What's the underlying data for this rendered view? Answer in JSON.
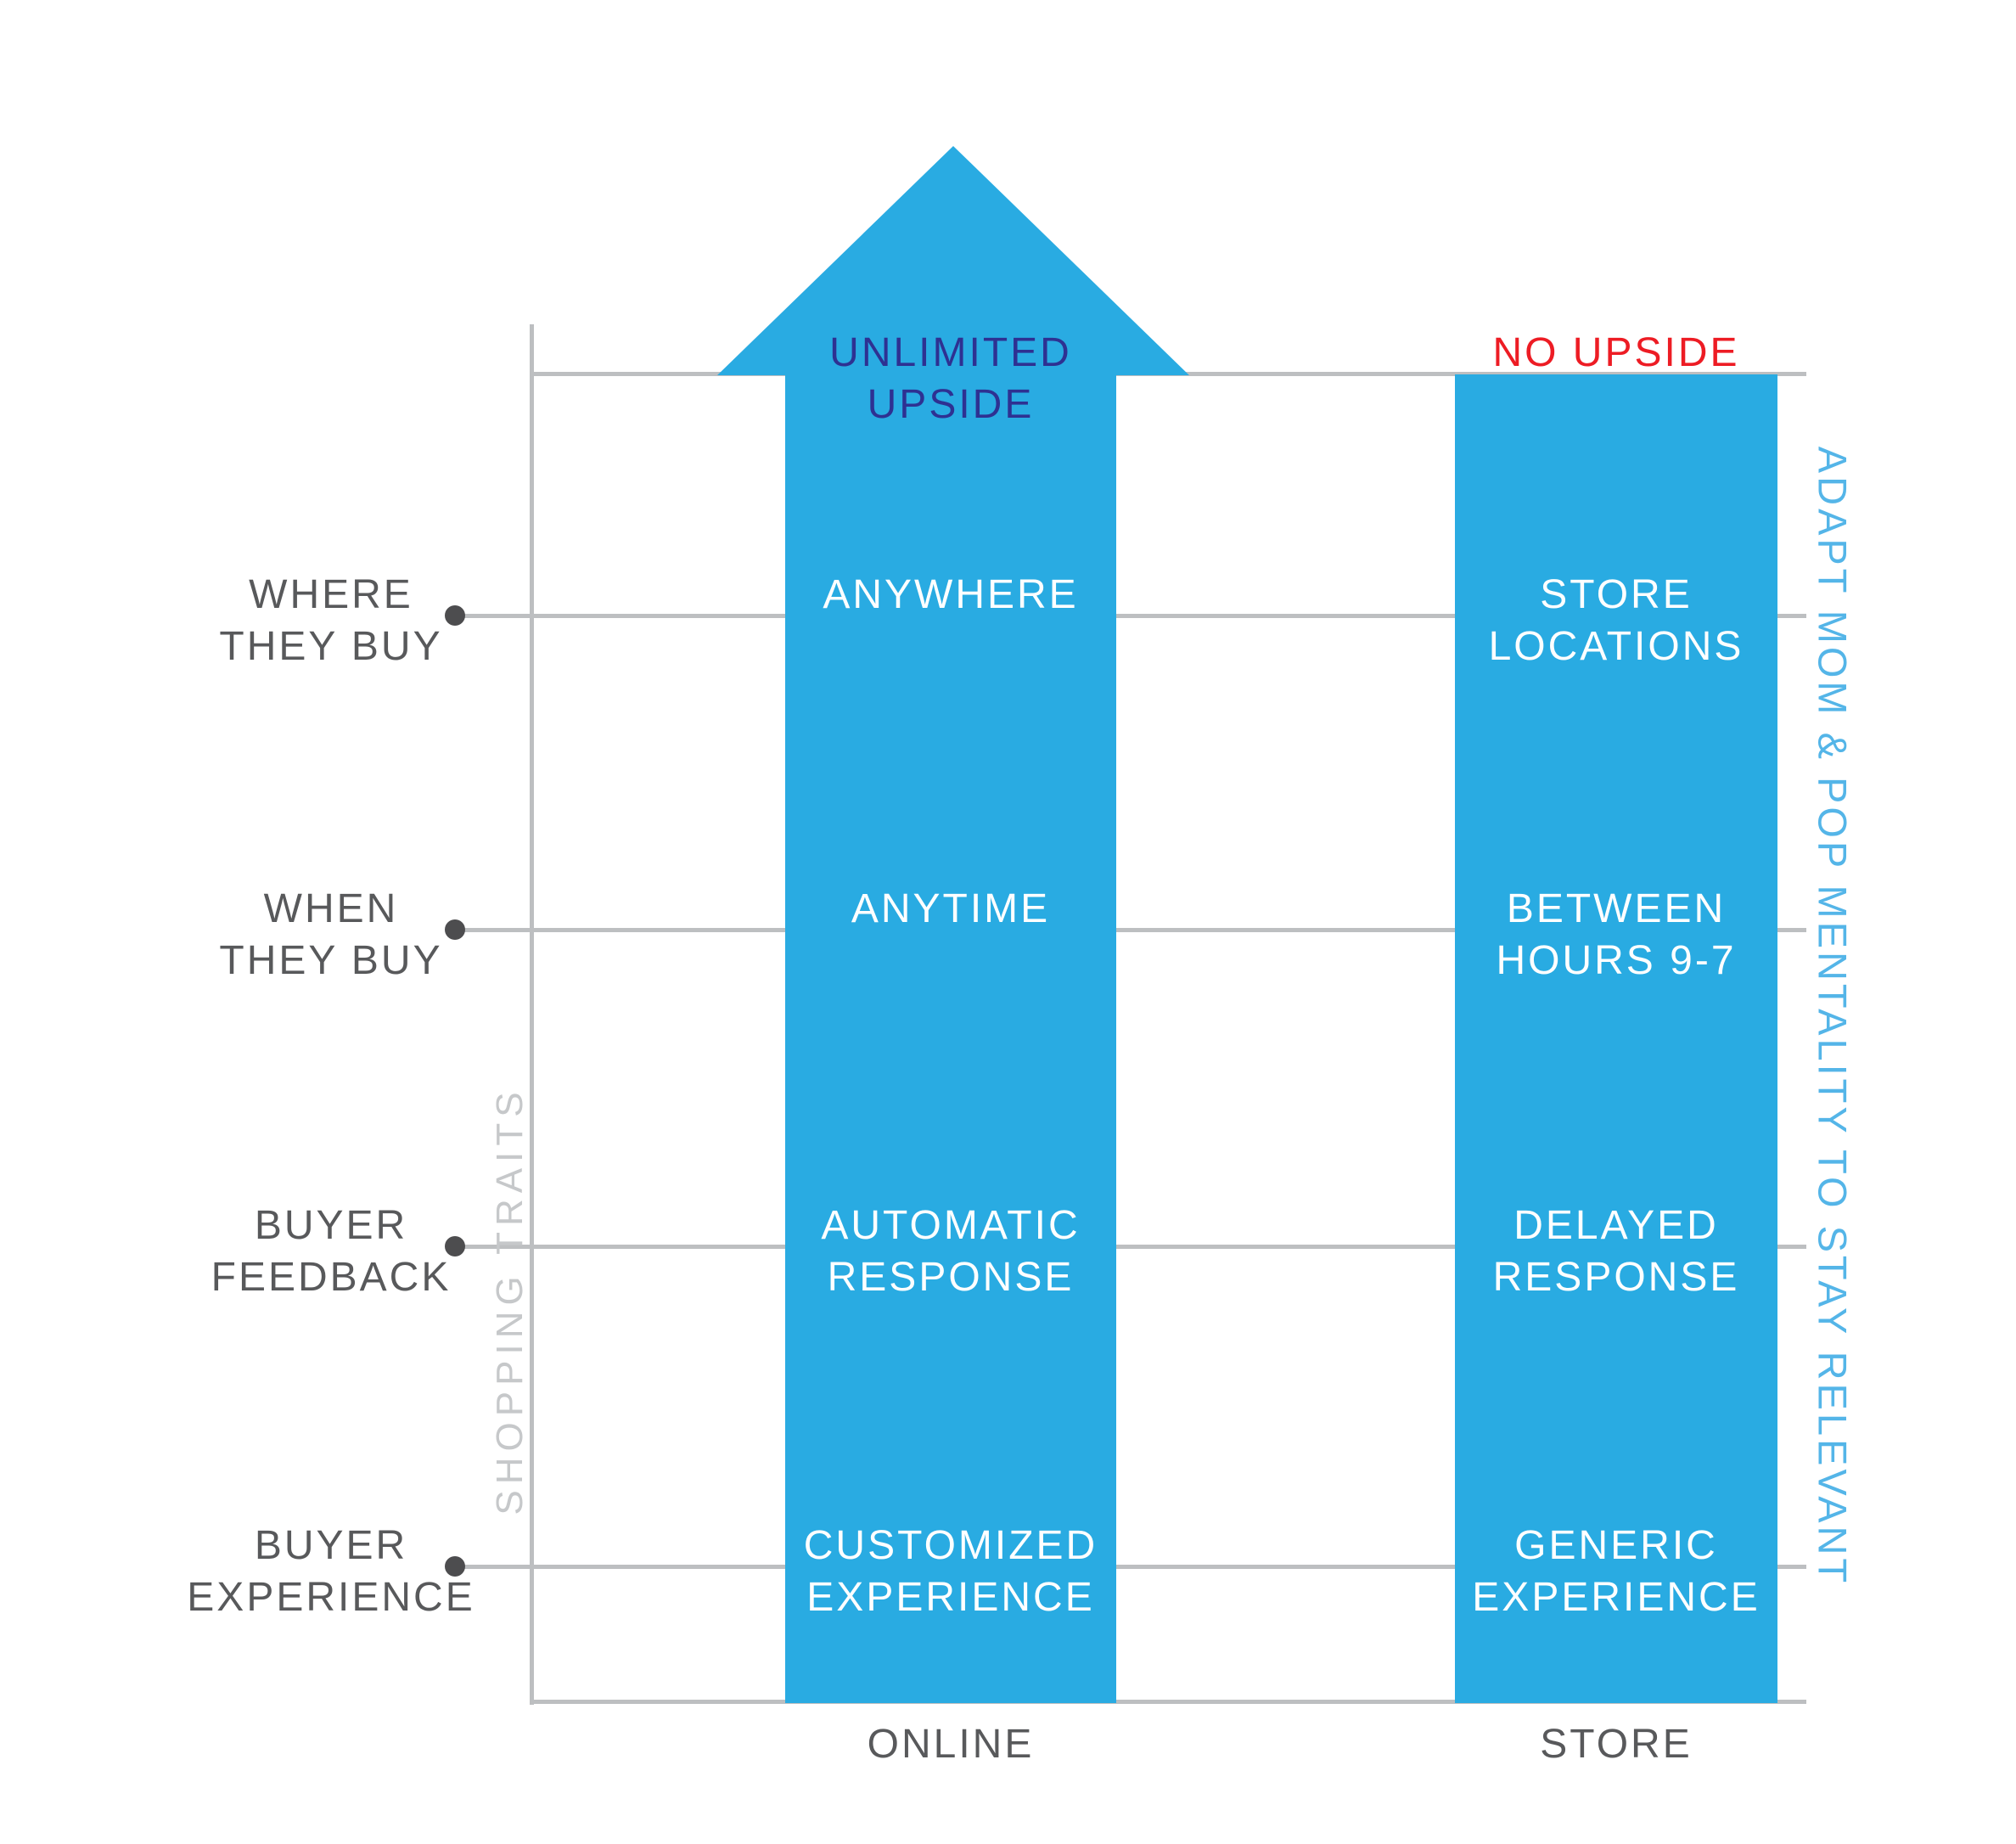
{
  "colors": {
    "column_blue": "#29ABE2",
    "navy": "#2E3192",
    "red": "#ED1C24",
    "text_gray": "#58595B",
    "line_gray": "#BDBFC1",
    "light_gray_label": "#C6C8CA",
    "light_blue_label": "#54B5E8"
  },
  "arrow_label": {
    "line1": "UNLIMITED",
    "line2": "UPSIDE"
  },
  "store_upside_label": "NO UPSIDE",
  "left_axis_label": "SHOPPING TRAITS",
  "right_axis_label": "ADAPT MOM & POP MENTALITY TO STAY RELEVANT",
  "columns": {
    "online_label": "ONLINE",
    "store_label": "STORE"
  },
  "rows": [
    {
      "trait_line1": "WHERE",
      "trait_line2": "THEY BUY",
      "online_line1": "ANYWHERE",
      "online_line2": "",
      "store_line1": "STORE",
      "store_line2": "LOCATIONS"
    },
    {
      "trait_line1": "WHEN",
      "trait_line2": "THEY BUY",
      "online_line1": "ANYTIME",
      "online_line2": "",
      "store_line1": "BETWEEN",
      "store_line2": "HOURS 9-7"
    },
    {
      "trait_line1": "BUYER",
      "trait_line2": "FEEDBACK",
      "online_line1": "AUTOMATIC",
      "online_line2": "RESPONSE",
      "store_line1": "DELAYED",
      "store_line2": "RESPONSE"
    },
    {
      "trait_line1": "BUYER",
      "trait_line2": "EXPERIENCE",
      "online_line1": "CUSTOMIZED",
      "online_line2": "EXPERIENCE",
      "store_line1": "GENERIC",
      "store_line2": "EXPERIENCE"
    }
  ]
}
